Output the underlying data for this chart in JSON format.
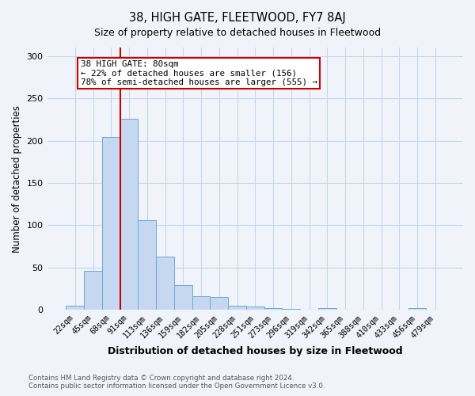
{
  "title": "38, HIGH GATE, FLEETWOOD, FY7 8AJ",
  "subtitle": "Size of property relative to detached houses in Fleetwood",
  "xlabel": "Distribution of detached houses by size in Fleetwood",
  "ylabel": "Number of detached properties",
  "bar_labels": [
    "22sqm",
    "45sqm",
    "68sqm",
    "91sqm",
    "113sqm",
    "136sqm",
    "159sqm",
    "182sqm",
    "205sqm",
    "228sqm",
    "251sqm",
    "273sqm",
    "296sqm",
    "319sqm",
    "342sqm",
    "365sqm",
    "388sqm",
    "410sqm",
    "433sqm",
    "456sqm",
    "479sqm"
  ],
  "bar_values": [
    5,
    46,
    204,
    226,
    106,
    63,
    29,
    16,
    15,
    5,
    4,
    2,
    1,
    0,
    2,
    0,
    0,
    0,
    0,
    2,
    0
  ],
  "bar_color": "#c5d8f0",
  "bar_edge_color": "#6aaad4",
  "vline_color": "#cc0000",
  "annotation_text": "38 HIGH GATE: 80sqm\n← 22% of detached houses are smaller (156)\n78% of semi-detached houses are larger (555) →",
  "annotation_box_color": "#ffffff",
  "annotation_box_edge_color": "#cc0000",
  "ylim": [
    0,
    310
  ],
  "yticks": [
    0,
    50,
    100,
    150,
    200,
    250,
    300
  ],
  "footer_line1": "Contains HM Land Registry data © Crown copyright and database right 2024.",
  "footer_line2": "Contains public sector information licensed under the Open Government Licence v3.0.",
  "bg_color": "#f0f4fa",
  "plot_bg_color": "#f0f4fa"
}
